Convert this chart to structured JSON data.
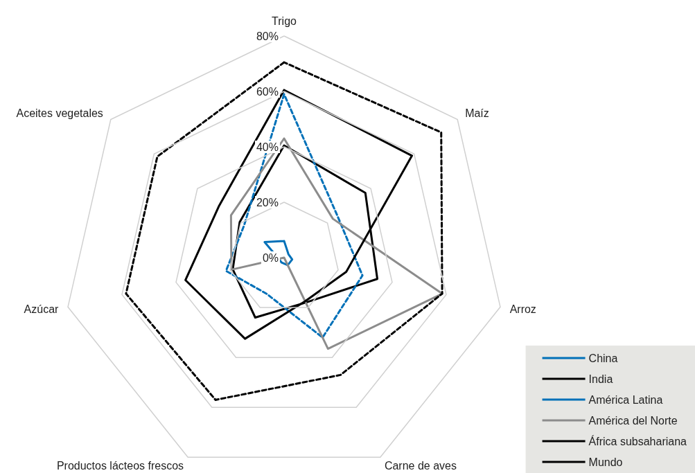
{
  "chart_data": {
    "type": "radar",
    "categories": [
      "Trigo",
      "Maíz",
      "Arroz",
      "Carne de aves",
      "Productos lácteos frescos",
      "Azúcar",
      "Aceites vegetales"
    ],
    "series": [
      {
        "name": "China",
        "color": "#0070b8",
        "line_style": "solid",
        "values": [
          6,
          2,
          3,
          3,
          2,
          2,
          9
        ]
      },
      {
        "name": "India",
        "color": "#000000",
        "line_style": "solid",
        "values": [
          40.5,
          37.5,
          34.5,
          18,
          24,
          19,
          20.5
        ]
      },
      {
        "name": "América Latina",
        "color": "#0070b8",
        "line_style": "dashed",
        "values": [
          59,
          24.5,
          29,
          32,
          14.5,
          21.5,
          18.5
        ]
      },
      {
        "name": "América del Norte",
        "color": "#8c8c8c",
        "line_style": "solid",
        "values": [
          43,
          22.5,
          58.5,
          36.5,
          0,
          19.5,
          24.5
        ]
      },
      {
        "name": "África subsahariana",
        "color": "#000000",
        "line_style": "dashed",
        "values": [
          70.5,
          72.5,
          58.5,
          47,
          57,
          58.5,
          58.5
        ]
      },
      {
        "name": "Mundo",
        "color": "#000000",
        "line_style": "solid",
        "values": [
          60.5,
          59,
          23,
          17.5,
          32.5,
          36.5,
          30
        ]
      }
    ],
    "ylim": [
      0,
      80
    ],
    "yticks": [
      {
        "value": 0,
        "label": "0%"
      },
      {
        "value": 20,
        "label": "20%"
      },
      {
        "value": 40,
        "label": "40%"
      },
      {
        "value": 60,
        "label": "60%"
      },
      {
        "value": 80,
        "label": "80%"
      }
    ],
    "legend": "bottom right",
    "grid": true,
    "marker": "none"
  }
}
